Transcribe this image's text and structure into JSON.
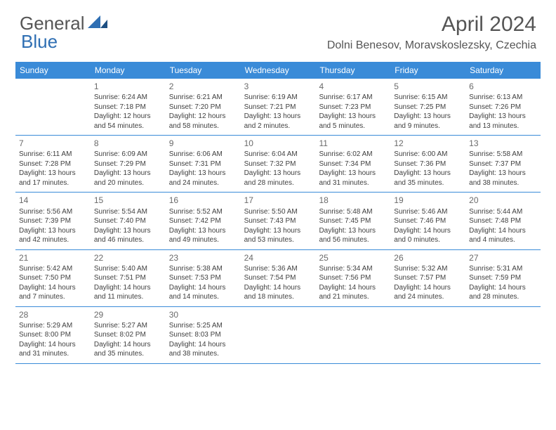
{
  "brand": {
    "part1": "General",
    "part2": "Blue"
  },
  "title": "April 2024",
  "location": "Dolni Benesov, Moravskoslezsky, Czechia",
  "colors": {
    "header_bg": "#3a8bd8",
    "header_text": "#ffffff",
    "brand_gray": "#555555",
    "brand_blue": "#2f6fb3",
    "cell_text": "#404040",
    "daynum": "#6a6a6a",
    "divider": "#3a8bd8"
  },
  "weekdays": [
    "Sunday",
    "Monday",
    "Tuesday",
    "Wednesday",
    "Thursday",
    "Friday",
    "Saturday"
  ],
  "weeks": [
    [
      {
        "num": "",
        "sunrise": "",
        "sunset": "",
        "daylight": ""
      },
      {
        "num": "1",
        "sunrise": "Sunrise: 6:24 AM",
        "sunset": "Sunset: 7:18 PM",
        "daylight": "Daylight: 12 hours and 54 minutes."
      },
      {
        "num": "2",
        "sunrise": "Sunrise: 6:21 AM",
        "sunset": "Sunset: 7:20 PM",
        "daylight": "Daylight: 12 hours and 58 minutes."
      },
      {
        "num": "3",
        "sunrise": "Sunrise: 6:19 AM",
        "sunset": "Sunset: 7:21 PM",
        "daylight": "Daylight: 13 hours and 2 minutes."
      },
      {
        "num": "4",
        "sunrise": "Sunrise: 6:17 AM",
        "sunset": "Sunset: 7:23 PM",
        "daylight": "Daylight: 13 hours and 5 minutes."
      },
      {
        "num": "5",
        "sunrise": "Sunrise: 6:15 AM",
        "sunset": "Sunset: 7:25 PM",
        "daylight": "Daylight: 13 hours and 9 minutes."
      },
      {
        "num": "6",
        "sunrise": "Sunrise: 6:13 AM",
        "sunset": "Sunset: 7:26 PM",
        "daylight": "Daylight: 13 hours and 13 minutes."
      }
    ],
    [
      {
        "num": "7",
        "sunrise": "Sunrise: 6:11 AM",
        "sunset": "Sunset: 7:28 PM",
        "daylight": "Daylight: 13 hours and 17 minutes."
      },
      {
        "num": "8",
        "sunrise": "Sunrise: 6:09 AM",
        "sunset": "Sunset: 7:29 PM",
        "daylight": "Daylight: 13 hours and 20 minutes."
      },
      {
        "num": "9",
        "sunrise": "Sunrise: 6:06 AM",
        "sunset": "Sunset: 7:31 PM",
        "daylight": "Daylight: 13 hours and 24 minutes."
      },
      {
        "num": "10",
        "sunrise": "Sunrise: 6:04 AM",
        "sunset": "Sunset: 7:32 PM",
        "daylight": "Daylight: 13 hours and 28 minutes."
      },
      {
        "num": "11",
        "sunrise": "Sunrise: 6:02 AM",
        "sunset": "Sunset: 7:34 PM",
        "daylight": "Daylight: 13 hours and 31 minutes."
      },
      {
        "num": "12",
        "sunrise": "Sunrise: 6:00 AM",
        "sunset": "Sunset: 7:36 PM",
        "daylight": "Daylight: 13 hours and 35 minutes."
      },
      {
        "num": "13",
        "sunrise": "Sunrise: 5:58 AM",
        "sunset": "Sunset: 7:37 PM",
        "daylight": "Daylight: 13 hours and 38 minutes."
      }
    ],
    [
      {
        "num": "14",
        "sunrise": "Sunrise: 5:56 AM",
        "sunset": "Sunset: 7:39 PM",
        "daylight": "Daylight: 13 hours and 42 minutes."
      },
      {
        "num": "15",
        "sunrise": "Sunrise: 5:54 AM",
        "sunset": "Sunset: 7:40 PM",
        "daylight": "Daylight: 13 hours and 46 minutes."
      },
      {
        "num": "16",
        "sunrise": "Sunrise: 5:52 AM",
        "sunset": "Sunset: 7:42 PM",
        "daylight": "Daylight: 13 hours and 49 minutes."
      },
      {
        "num": "17",
        "sunrise": "Sunrise: 5:50 AM",
        "sunset": "Sunset: 7:43 PM",
        "daylight": "Daylight: 13 hours and 53 minutes."
      },
      {
        "num": "18",
        "sunrise": "Sunrise: 5:48 AM",
        "sunset": "Sunset: 7:45 PM",
        "daylight": "Daylight: 13 hours and 56 minutes."
      },
      {
        "num": "19",
        "sunrise": "Sunrise: 5:46 AM",
        "sunset": "Sunset: 7:46 PM",
        "daylight": "Daylight: 14 hours and 0 minutes."
      },
      {
        "num": "20",
        "sunrise": "Sunrise: 5:44 AM",
        "sunset": "Sunset: 7:48 PM",
        "daylight": "Daylight: 14 hours and 4 minutes."
      }
    ],
    [
      {
        "num": "21",
        "sunrise": "Sunrise: 5:42 AM",
        "sunset": "Sunset: 7:50 PM",
        "daylight": "Daylight: 14 hours and 7 minutes."
      },
      {
        "num": "22",
        "sunrise": "Sunrise: 5:40 AM",
        "sunset": "Sunset: 7:51 PM",
        "daylight": "Daylight: 14 hours and 11 minutes."
      },
      {
        "num": "23",
        "sunrise": "Sunrise: 5:38 AM",
        "sunset": "Sunset: 7:53 PM",
        "daylight": "Daylight: 14 hours and 14 minutes."
      },
      {
        "num": "24",
        "sunrise": "Sunrise: 5:36 AM",
        "sunset": "Sunset: 7:54 PM",
        "daylight": "Daylight: 14 hours and 18 minutes."
      },
      {
        "num": "25",
        "sunrise": "Sunrise: 5:34 AM",
        "sunset": "Sunset: 7:56 PM",
        "daylight": "Daylight: 14 hours and 21 minutes."
      },
      {
        "num": "26",
        "sunrise": "Sunrise: 5:32 AM",
        "sunset": "Sunset: 7:57 PM",
        "daylight": "Daylight: 14 hours and 24 minutes."
      },
      {
        "num": "27",
        "sunrise": "Sunrise: 5:31 AM",
        "sunset": "Sunset: 7:59 PM",
        "daylight": "Daylight: 14 hours and 28 minutes."
      }
    ],
    [
      {
        "num": "28",
        "sunrise": "Sunrise: 5:29 AM",
        "sunset": "Sunset: 8:00 PM",
        "daylight": "Daylight: 14 hours and 31 minutes."
      },
      {
        "num": "29",
        "sunrise": "Sunrise: 5:27 AM",
        "sunset": "Sunset: 8:02 PM",
        "daylight": "Daylight: 14 hours and 35 minutes."
      },
      {
        "num": "30",
        "sunrise": "Sunrise: 5:25 AM",
        "sunset": "Sunset: 8:03 PM",
        "daylight": "Daylight: 14 hours and 38 minutes."
      },
      {
        "num": "",
        "sunrise": "",
        "sunset": "",
        "daylight": ""
      },
      {
        "num": "",
        "sunrise": "",
        "sunset": "",
        "daylight": ""
      },
      {
        "num": "",
        "sunrise": "",
        "sunset": "",
        "daylight": ""
      },
      {
        "num": "",
        "sunrise": "",
        "sunset": "",
        "daylight": ""
      }
    ]
  ]
}
